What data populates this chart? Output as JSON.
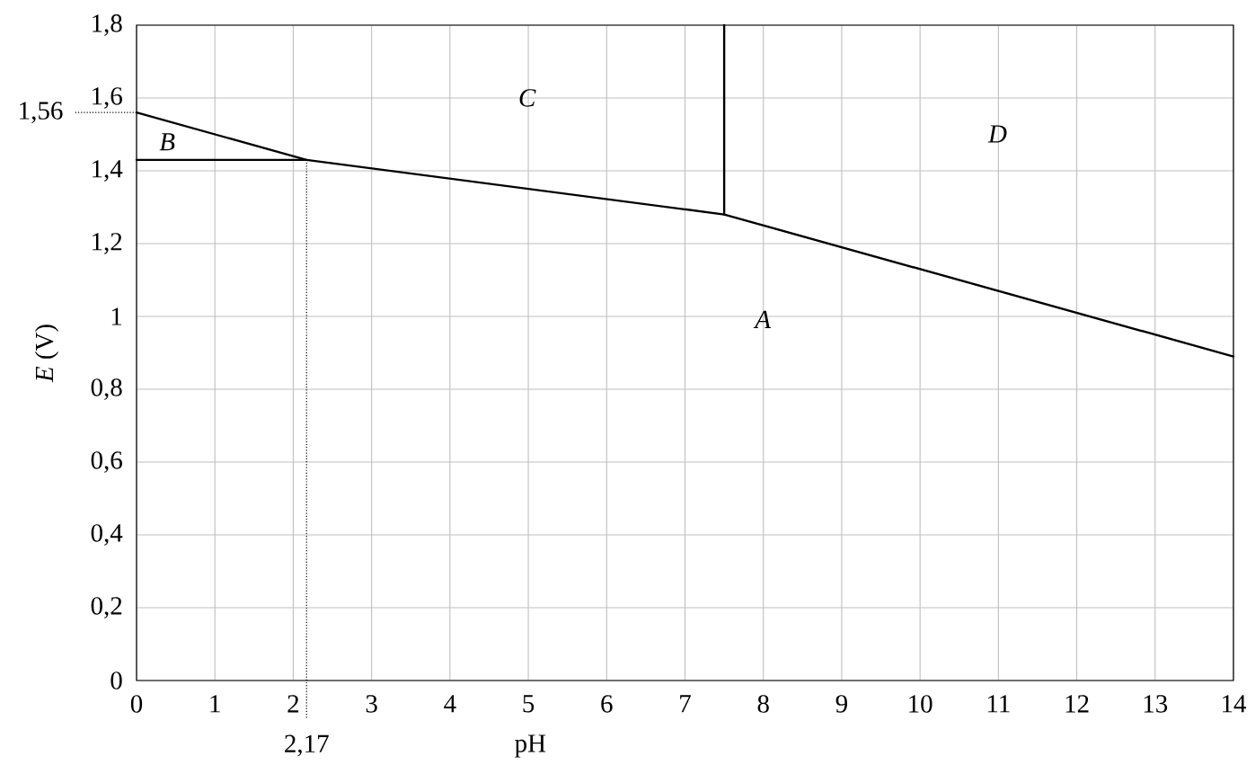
{
  "chart_data": {
    "type": "line",
    "xlabel": "pH",
    "ylabel": "*E* (V)",
    "xlim": [
      0,
      14
    ],
    "ylim": [
      0,
      1.8
    ],
    "xticks": [
      0,
      1,
      2,
      3,
      4,
      5,
      6,
      7,
      8,
      9,
      10,
      11,
      12,
      13,
      14
    ],
    "yticks": [
      0,
      {
        "value": 0.2,
        "label": "0,2"
      },
      {
        "value": 0.4,
        "label": "0,4"
      },
      {
        "value": 0.6,
        "label": "0,6"
      },
      {
        "value": 0.8,
        "label": "0,8"
      },
      1,
      {
        "value": 1.2,
        "label": "1,2"
      },
      {
        "value": 1.4,
        "label": "1,4"
      },
      {
        "value": 1.6,
        "label": "1,6"
      },
      {
        "value": 1.8,
        "label": "1,8"
      }
    ],
    "grid": true,
    "series": [
      {
        "color": "#000000",
        "x": [
          0,
          2.17,
          7.5,
          14
        ],
        "values": [
          1.56,
          1.43,
          1.28,
          0.89
        ]
      },
      {
        "color": "#000000",
        "x": [
          0,
          2.17
        ],
        "values": [
          1.43,
          1.43
        ]
      },
      {
        "color": "#000000",
        "x": [
          7.5,
          7.5
        ],
        "values": [
          1.28,
          1.8
        ]
      }
    ],
    "ref_lines": [
      {
        "axis": "x",
        "value": 2.17,
        "label": "2,17",
        "line_style": "dotted"
      },
      {
        "axis": "y",
        "value": 1.56,
        "label": "1,56",
        "line_style": "dotted"
      }
    ],
    "annotations": [
      "A",
      "B",
      "C",
      "D"
    ]
  }
}
